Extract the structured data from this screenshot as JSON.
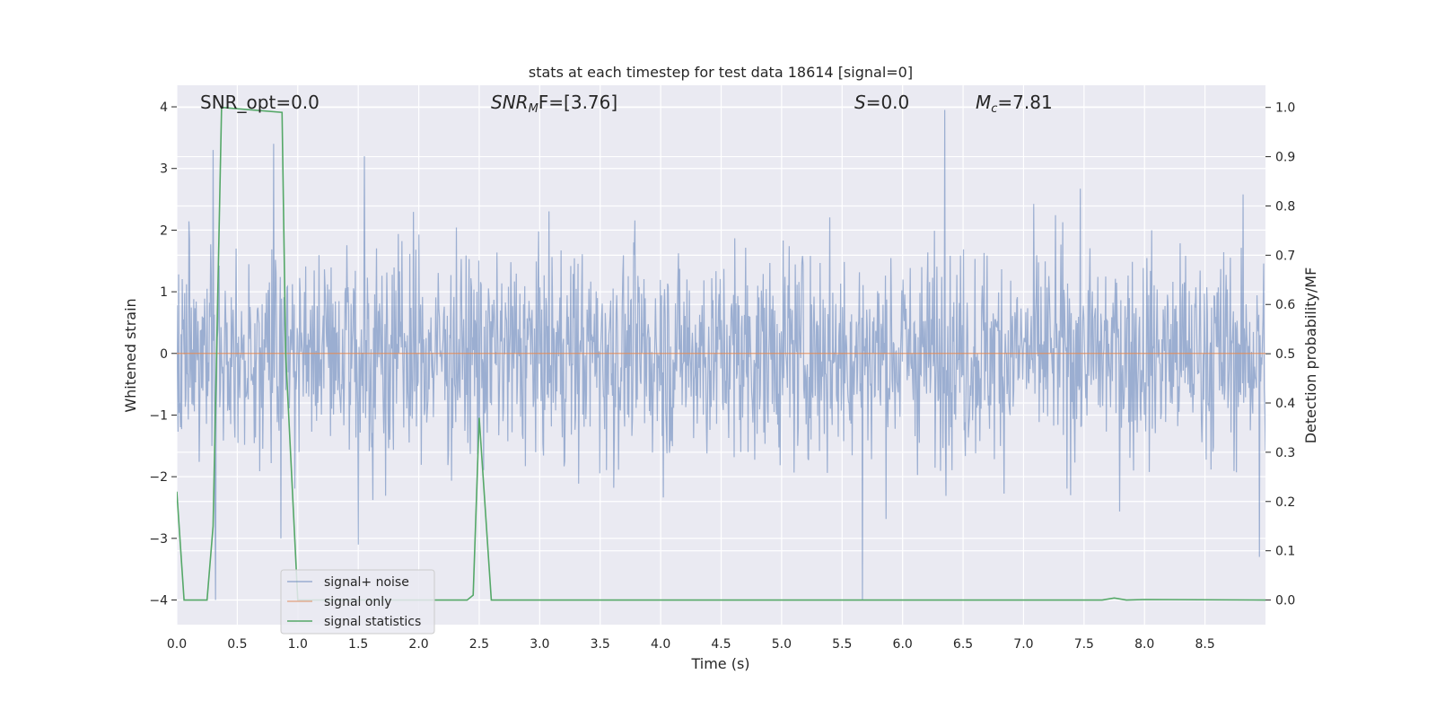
{
  "chart_data": {
    "type": "line",
    "title": "stats at each timestep for test data 18614 [signal=0]",
    "xlabel": "Time (s)",
    "ylabel_left": "Whitened strain",
    "ylabel_right": "Detection probability/MF",
    "xlim": [
      0.0,
      9.0
    ],
    "ylim_left": [
      -4.4,
      4.35
    ],
    "ylim_right": [
      -0.05,
      1.045
    ],
    "xticks": [
      0.0,
      0.5,
      1.0,
      1.5,
      2.0,
      2.5,
      3.0,
      3.5,
      4.0,
      4.5,
      5.0,
      5.5,
      6.0,
      6.5,
      7.0,
      7.5,
      8.0,
      8.5
    ],
    "xtick_labels": [
      "0.0",
      "0.5",
      "1.0",
      "1.5",
      "2.0",
      "2.5",
      "3.0",
      "3.5",
      "4.0",
      "4.5",
      "5.0",
      "5.5",
      "6.0",
      "6.5",
      "7.0",
      "7.5",
      "8.0",
      "8.5"
    ],
    "yticks_left": [
      -4,
      -3,
      -2,
      -1,
      0,
      1,
      2,
      3,
      4
    ],
    "ytick_labels_left": [
      "−4",
      "−3",
      "−2",
      "−1",
      "0",
      "1",
      "2",
      "3",
      "4"
    ],
    "yticks_right": [
      0.0,
      0.1,
      0.2,
      0.3,
      0.4,
      0.5,
      0.6,
      0.7,
      0.8,
      0.9,
      1.0
    ],
    "ytick_labels_right": [
      "0.0",
      "0.1",
      "0.2",
      "0.3",
      "0.4",
      "0.5",
      "0.6",
      "0.7",
      "0.8",
      "0.9",
      "1.0"
    ],
    "annotations": {
      "snr_opt": "SNR_opt=0.0",
      "snr_mf_name": "SNR",
      "snr_mf_sub": "M",
      "snr_mf_rest": "F=[3.76]",
      "s_name": "S",
      "s_rest": "=0.0",
      "mc_name": "M",
      "mc_sub": "c",
      "mc_rest": "=7.81"
    },
    "legend": {
      "placement": "lower-left",
      "entries": [
        "signal+ noise",
        "signal only",
        "signal statistics"
      ]
    },
    "series": [
      {
        "name": "signal+ noise",
        "axis": "left",
        "color": "#4c72b0",
        "note": "dense whitened noise, roughly within ±2 with spikes up to about ±4",
        "x_range": [
          0.0,
          9.0
        ],
        "samples": 1800,
        "noise_sigma": 0.85,
        "spikes": [
          [
            0.3,
            3.3
          ],
          [
            0.32,
            -4.0
          ],
          [
            0.8,
            3.4
          ],
          [
            0.86,
            -3.0
          ],
          [
            1.55,
            3.2
          ],
          [
            1.5,
            -3.1
          ],
          [
            5.67,
            -4.0
          ],
          [
            6.35,
            3.95
          ],
          [
            8.95,
            -3.3
          ]
        ]
      },
      {
        "name": "signal only",
        "axis": "left",
        "color": "#dd8452",
        "x": [
          0.0,
          9.0
        ],
        "y": [
          0.0,
          0.0
        ]
      },
      {
        "name": "signal statistics",
        "axis": "right",
        "color": "#55a868",
        "x": [
          0.0,
          0.06,
          0.25,
          0.3,
          0.37,
          0.87,
          0.9,
          1.0,
          1.1,
          2.0,
          2.4,
          2.45,
          2.5,
          2.6,
          7.5,
          7.65,
          7.75,
          7.85,
          8.0,
          9.0
        ],
        "y": [
          0.22,
          0.0,
          0.0,
          0.15,
          1.0,
          0.99,
          0.5,
          0.0,
          0.0,
          0.0,
          0.0,
          0.01,
          0.37,
          0.0,
          0.0,
          0.0,
          0.004,
          0.0,
          0.001,
          0.0
        ]
      }
    ]
  }
}
